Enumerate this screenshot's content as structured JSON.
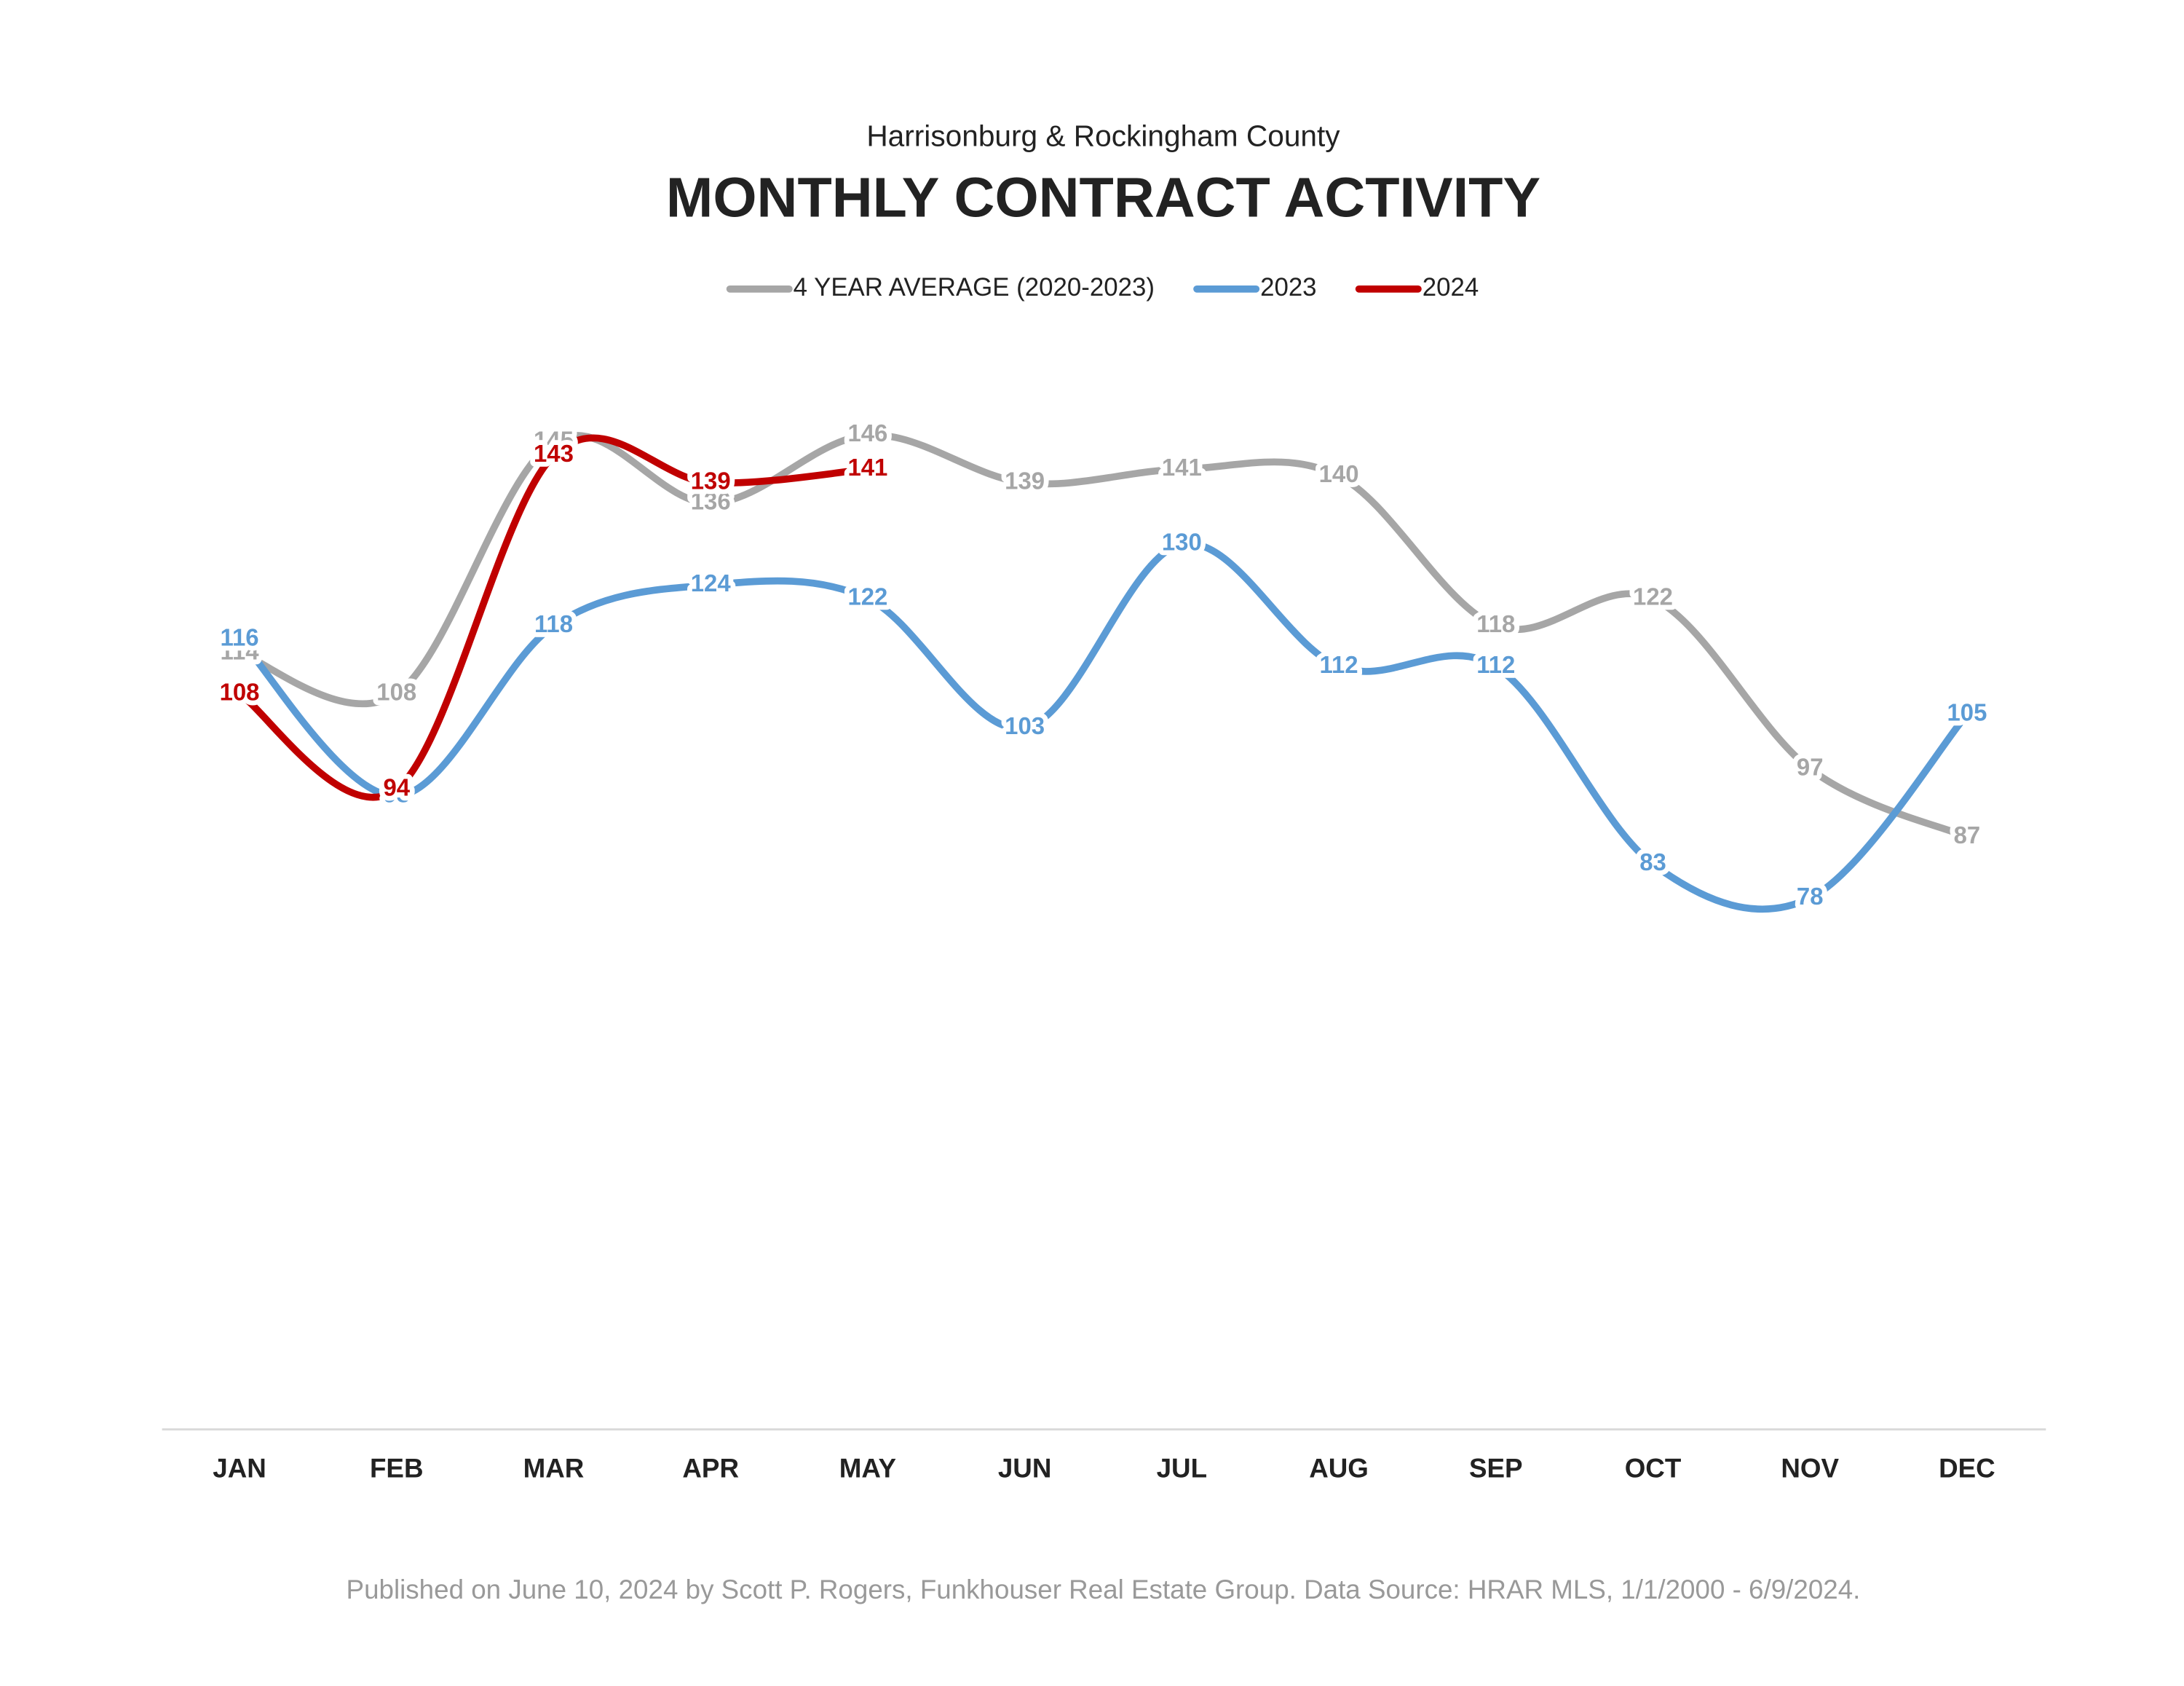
{
  "chart_data": {
    "type": "line",
    "subtitle": "Harrisonburg & Rockingham County",
    "title": "MONTHLY CONTRACT ACTIVITY",
    "categories": [
      "JAN",
      "FEB",
      "MAR",
      "APR",
      "MAY",
      "JUN",
      "JUL",
      "AUG",
      "SEP",
      "OCT",
      "NOV",
      "DEC"
    ],
    "series": [
      {
        "name": "4 YEAR AVERAGE (2020-2023)",
        "color": "#a6a6a6",
        "values": [
          114,
          108,
          145,
          136,
          146,
          139,
          141,
          140,
          118,
          122,
          97,
          87
        ]
      },
      {
        "name": "2023",
        "color": "#5b9bd5",
        "values": [
          116,
          93,
          118,
          124,
          122,
          103,
          130,
          112,
          112,
          83,
          78,
          105
        ]
      },
      {
        "name": "2024",
        "color": "#c00000",
        "values": [
          108,
          94,
          143,
          139,
          141,
          null,
          null,
          null,
          null,
          null,
          null,
          null
        ]
      }
    ],
    "ylim": [
      0,
      160
    ],
    "legend": "top",
    "smooth": true,
    "footnote": "Published on June 10, 2024 by Scott P. Rogers, Funkhouser Real Estate Group. Data Source: HRAR MLS, 1/1/2000 - 6/9/2024."
  }
}
